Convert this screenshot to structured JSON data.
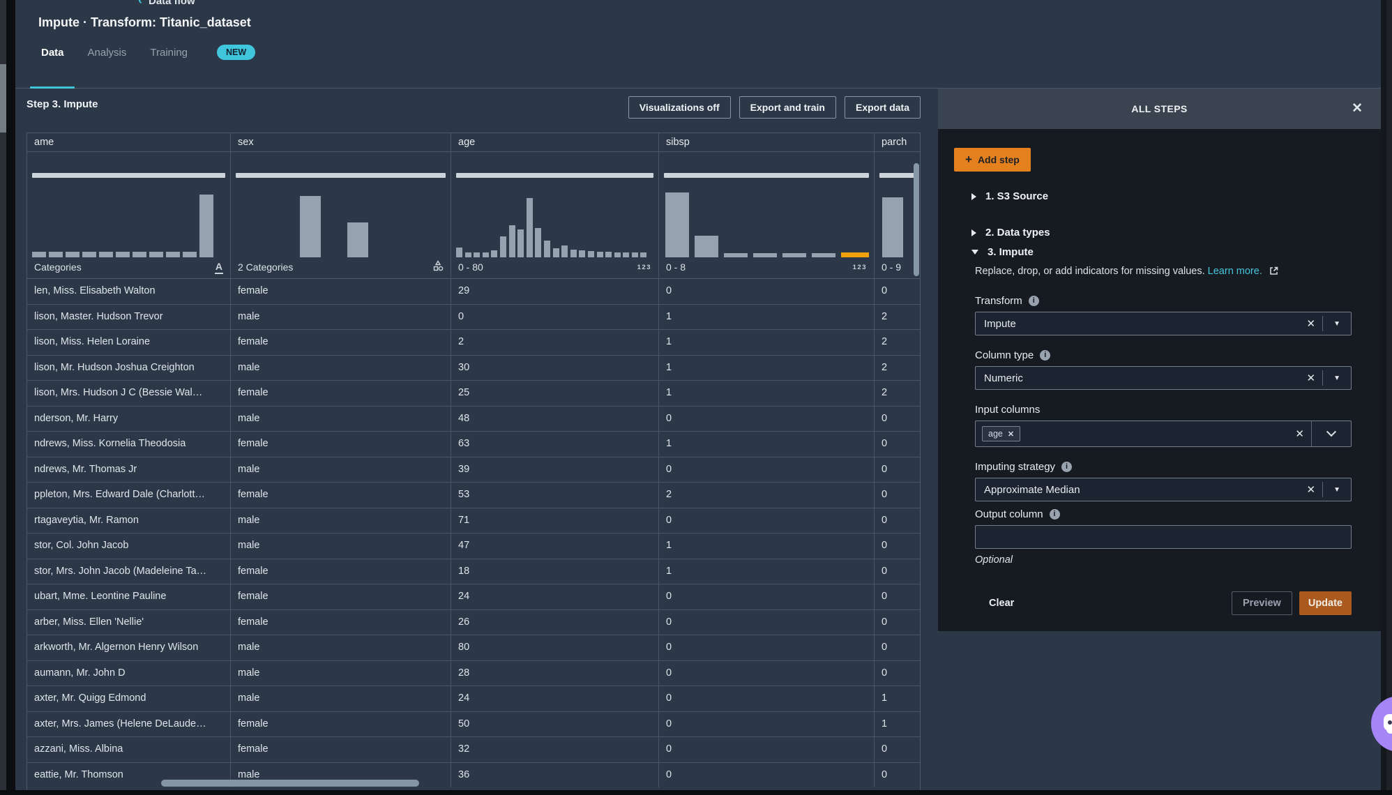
{
  "page": {
    "back_link": "Data flow",
    "title": "Impute · Transform: Titanic_dataset"
  },
  "tabs": [
    {
      "label": "Data",
      "active": true
    },
    {
      "label": "Analysis",
      "active": false
    },
    {
      "label": "Training",
      "active": false,
      "badge": "NEW"
    }
  ],
  "toolbar": {
    "step_title": "Step 3. Impute",
    "buttons": [
      "Visualizations off",
      "Export and train",
      "Export data"
    ]
  },
  "table": {
    "columns": [
      {
        "header": "ame",
        "footer": "Categories",
        "icon": "text",
        "histogram": {
          "bars": [
            [
              8,
              20,
              0
            ],
            [
              8,
              20,
              4
            ],
            [
              8,
              20,
              4
            ],
            [
              8,
              20,
              4
            ],
            [
              8,
              20,
              4
            ],
            [
              8,
              20,
              4
            ],
            [
              8,
              20,
              4
            ],
            [
              8,
              20,
              4
            ],
            [
              8,
              20,
              4
            ],
            [
              8,
              20,
              4
            ],
            [
              90,
              20,
              4
            ]
          ]
        }
      },
      {
        "header": "sex",
        "footer": "2 Categories",
        "icon": "shapes",
        "histogram": {
          "bars": [
            [
              88,
              30,
              92
            ],
            [
              50,
              30,
              38
            ]
          ]
        }
      },
      {
        "header": "age",
        "footer": "0 - 80",
        "icon": "123",
        "histogram": {
          "bars": [
            [
              14,
              9,
              0
            ],
            [
              7,
              9,
              3.6
            ],
            [
              7,
              9,
              3.6
            ],
            [
              7,
              9,
              3.6
            ],
            [
              10,
              9,
              3.6
            ],
            [
              30,
              9,
              3.6
            ],
            [
              46,
              9,
              3.6
            ],
            [
              40,
              9,
              3.6
            ],
            [
              85,
              9,
              3.6
            ],
            [
              42,
              9,
              3.6
            ],
            [
              24,
              9,
              3.6
            ],
            [
              13,
              9,
              3.6
            ],
            [
              17,
              9,
              3.6
            ],
            [
              11,
              9,
              3.6
            ],
            [
              10,
              9,
              3.6
            ],
            [
              9,
              9,
              3.6
            ],
            [
              8,
              9,
              3.6
            ],
            [
              8,
              9,
              3.6
            ],
            [
              7,
              9,
              3.6
            ],
            [
              7,
              9,
              3.6
            ],
            [
              7,
              9,
              3.6
            ],
            [
              7,
              9,
              3.6
            ]
          ]
        }
      },
      {
        "header": "sibsp",
        "footer": "0 - 8",
        "icon": "123",
        "histogram": {
          "bars": [
            [
              93,
              34,
              2
            ],
            [
              31,
              34,
              8
            ],
            [
              6,
              34,
              8
            ],
            [
              6,
              34,
              8
            ],
            [
              6,
              34,
              8
            ],
            [
              6,
              34,
              8
            ],
            [
              7,
              40,
              8,
              "#f0a20e"
            ]
          ]
        }
      },
      {
        "header": "parch",
        "footer": "0 - 9",
        "icon": null,
        "histogram": {
          "bars": [
            [
              86,
              30,
              4
            ]
          ]
        }
      }
    ],
    "rows": [
      [
        "len, Miss. Elisabeth Walton",
        "female",
        "29",
        "0",
        "0"
      ],
      [
        "lison, Master. Hudson Trevor",
        "male",
        "0",
        "1",
        "2"
      ],
      [
        "lison, Miss. Helen Loraine",
        "female",
        "2",
        "1",
        "2"
      ],
      [
        "lison, Mr. Hudson Joshua Creighton",
        "male",
        "30",
        "1",
        "2"
      ],
      [
        "lison, Mrs. Hudson J C (Bessie Wal…",
        "female",
        "25",
        "1",
        "2"
      ],
      [
        "nderson, Mr. Harry",
        "male",
        "48",
        "0",
        "0"
      ],
      [
        "ndrews, Miss. Kornelia Theodosia",
        "female",
        "63",
        "1",
        "0"
      ],
      [
        "ndrews, Mr. Thomas Jr",
        "male",
        "39",
        "0",
        "0"
      ],
      [
        "ppleton, Mrs. Edward Dale (Charlott…",
        "female",
        "53",
        "2",
        "0"
      ],
      [
        "rtagaveytia, Mr. Ramon",
        "male",
        "71",
        "0",
        "0"
      ],
      [
        "stor, Col. John Jacob",
        "male",
        "47",
        "1",
        "0"
      ],
      [
        "stor, Mrs. John Jacob (Madeleine Ta…",
        "female",
        "18",
        "1",
        "0"
      ],
      [
        "ubart, Mme. Leontine Pauline",
        "female",
        "24",
        "0",
        "0"
      ],
      [
        "arber, Miss. Ellen 'Nellie'",
        "female",
        "26",
        "0",
        "0"
      ],
      [
        "arkworth, Mr. Algernon Henry Wilson",
        "male",
        "80",
        "0",
        "0"
      ],
      [
        "aumann, Mr. John D",
        "male",
        "28",
        "0",
        "0"
      ],
      [
        "axter, Mr. Quigg Edmond",
        "male",
        "24",
        "0",
        "1"
      ],
      [
        "axter, Mrs. James (Helene DeLaude…",
        "female",
        "50",
        "0",
        "1"
      ],
      [
        "azzani, Miss. Albina",
        "female",
        "32",
        "0",
        "0"
      ],
      [
        "eattie, Mr. Thomson",
        "male",
        "36",
        "0",
        "0"
      ]
    ]
  },
  "panel": {
    "title": "ALL STEPS",
    "add_step_label": "Add step",
    "steps": [
      {
        "label": "1. S3 Source",
        "expanded": false
      },
      {
        "label": "2. Data types",
        "expanded": false
      },
      {
        "label": "3. Impute",
        "expanded": true
      }
    ],
    "description": "Replace, drop, or add indicators for missing values.",
    "learn_more": "Learn more.",
    "fields": {
      "transform": {
        "label": "Transform",
        "value": "Impute"
      },
      "column_type": {
        "label": "Column type",
        "value": "Numeric"
      },
      "input_columns": {
        "label": "Input columns",
        "tags": [
          "age"
        ]
      },
      "imputing_strategy": {
        "label": "Imputing strategy",
        "value": "Approximate Median"
      },
      "output_column": {
        "label": "Output column",
        "value": "",
        "hint": "Optional"
      }
    },
    "footer": {
      "clear": "Clear",
      "preview": "Preview",
      "update": "Update"
    }
  },
  "colors": {
    "accent_cyan": "#3fc6dc",
    "accent_orange": "#e4811e",
    "histogram_highlight": "#f0a20e",
    "update_button": "#aa5a1f",
    "chat_widget": "#a685f7"
  }
}
